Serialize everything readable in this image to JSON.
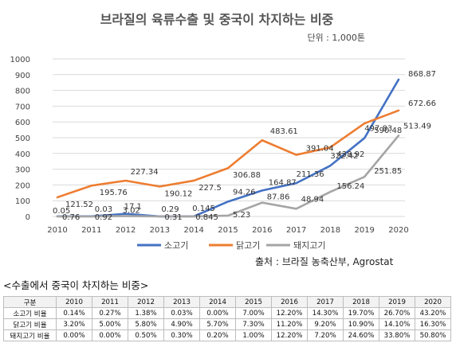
{
  "chart_data": {
    "type": "line",
    "title": "브라질의 육류수출 및 중국이 차지하는 비중",
    "unit": "단위 : 1,000톤",
    "x": [
      "2010",
      "2011",
      "2012",
      "2013",
      "2014",
      "2015",
      "2016",
      "2017",
      "2018",
      "2019",
      "2020"
    ],
    "ylim": [
      0,
      1000
    ],
    "yticks": [
      0,
      100,
      200,
      300,
      400,
      500,
      600,
      700,
      800,
      900,
      1000
    ],
    "grid": true,
    "legend_position": "bottom",
    "series": [
      {
        "name": "소고기",
        "color": "#4472C4",
        "values": [
          0.76,
          0.92,
          17.1,
          0.31,
          0.845,
          94.26,
          164.87,
          211.36,
          322.42,
          497.83,
          868.87
        ],
        "labels": [
          "0.76",
          "0.92",
          "17.1",
          "0.31",
          "0.845",
          "94.26",
          "164.87",
          "211.36",
          "322.42",
          "497.83",
          "868.87"
        ]
      },
      {
        "name": "닭고기",
        "color": "#ED7D31",
        "values": [
          121.52,
          195.76,
          227.34,
          190.12,
          227.5,
          306.88,
          483.61,
          391.04,
          438.92,
          590.48,
          672.66
        ],
        "labels": [
          "121.52",
          "195.76",
          "227.34",
          "190.12",
          "227.5",
          "306.88",
          "483.61",
          "391.04",
          "438.92",
          "590.48",
          "672.66"
        ]
      },
      {
        "name": "돼지고기",
        "color": "#A5A5A5",
        "values": [
          0.05,
          0.03,
          3.02,
          0.29,
          0.145,
          5.23,
          87.86,
          48.94,
          156.24,
          251.85,
          513.49
        ],
        "labels": [
          "0.05",
          "0.03",
          "3.02",
          "0.29",
          "0.145",
          "5.23",
          "87.86",
          "48.94",
          "156.24",
          "251.85",
          "513.49"
        ]
      }
    ]
  },
  "source": "출처 : 브라질 농축산부, Agrostat",
  "table": {
    "caption": "<수출에서 중국이 차지하는 비중>",
    "header": [
      "구분",
      "2010",
      "2011",
      "2012",
      "2013",
      "2014",
      "2015",
      "2016",
      "2017",
      "2018",
      "2019",
      "2020"
    ],
    "rows": [
      [
        "소고기 비율",
        "0.14%",
        "0.27%",
        "1.38%",
        "0.03%",
        "0.00%",
        "7.00%",
        "12.20%",
        "14.30%",
        "19.70%",
        "26.70%",
        "43.20%"
      ],
      [
        "닭고기 비율",
        "3.20%",
        "5.00%",
        "5.80%",
        "4.90%",
        "5.70%",
        "7.30%",
        "11.20%",
        "9.20%",
        "10.90%",
        "14.10%",
        "16.30%"
      ],
      [
        "돼지고기 비율",
        "0.00%",
        "0.00%",
        "0.50%",
        "0.30%",
        "0.20%",
        "1.00%",
        "12.20%",
        "7.20%",
        "24.60%",
        "33.80%",
        "50.80%"
      ]
    ]
  }
}
